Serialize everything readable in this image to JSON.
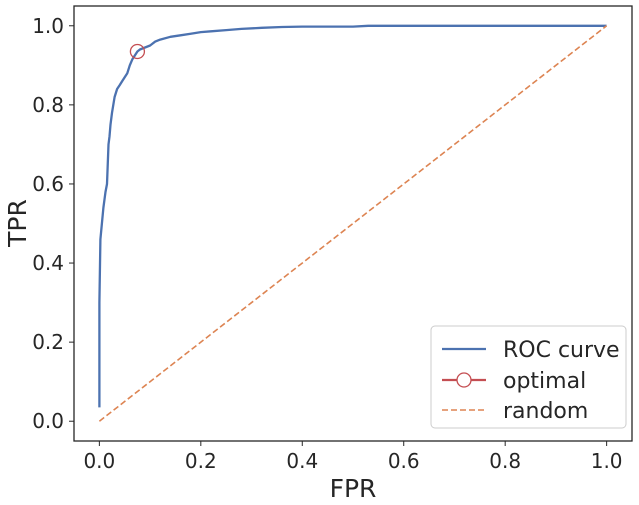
{
  "chart_data": {
    "type": "line",
    "xlabel": "FPR",
    "ylabel": "TPR",
    "xlim": [
      -0.05,
      1.05
    ],
    "ylim": [
      -0.05,
      1.05
    ],
    "x_ticks": [
      "0.0",
      "0.2",
      "0.4",
      "0.6",
      "0.8",
      "1.0"
    ],
    "y_ticks": [
      "0.0",
      "0.2",
      "0.4",
      "0.6",
      "0.8",
      "1.0"
    ],
    "grid": false,
    "legend_position": "bottom-right",
    "series": [
      {
        "name": "ROC curve",
        "style": "solid",
        "color": "#4c72b0",
        "x": [
          0.0,
          0.0,
          0.002,
          0.005,
          0.008,
          0.012,
          0.015,
          0.018,
          0.02,
          0.022,
          0.025,
          0.03,
          0.035,
          0.04,
          0.045,
          0.05,
          0.055,
          0.06,
          0.065,
          0.07,
          0.075,
          0.08,
          0.09,
          0.1,
          0.11,
          0.12,
          0.14,
          0.16,
          0.18,
          0.2,
          0.22,
          0.25,
          0.28,
          0.32,
          0.36,
          0.4,
          0.5,
          0.53,
          0.6,
          0.7,
          0.8,
          0.9,
          1.0
        ],
        "y": [
          0.035,
          0.3,
          0.46,
          0.5,
          0.54,
          0.58,
          0.6,
          0.7,
          0.72,
          0.75,
          0.78,
          0.82,
          0.84,
          0.85,
          0.86,
          0.87,
          0.88,
          0.9,
          0.915,
          0.925,
          0.935,
          0.94,
          0.945,
          0.95,
          0.96,
          0.965,
          0.972,
          0.976,
          0.98,
          0.984,
          0.986,
          0.989,
          0.992,
          0.995,
          0.997,
          0.998,
          0.998,
          1.0,
          1.0,
          1.0,
          1.0,
          1.0,
          1.0
        ]
      },
      {
        "name": "optimal",
        "style": "marker",
        "color": "#c44e52",
        "x": [
          0.075
        ],
        "y": [
          0.935
        ]
      },
      {
        "name": "random",
        "style": "dashed",
        "color": "#dd8452",
        "x": [
          0.0,
          1.0
        ],
        "y": [
          0.0,
          1.0
        ]
      }
    ]
  }
}
